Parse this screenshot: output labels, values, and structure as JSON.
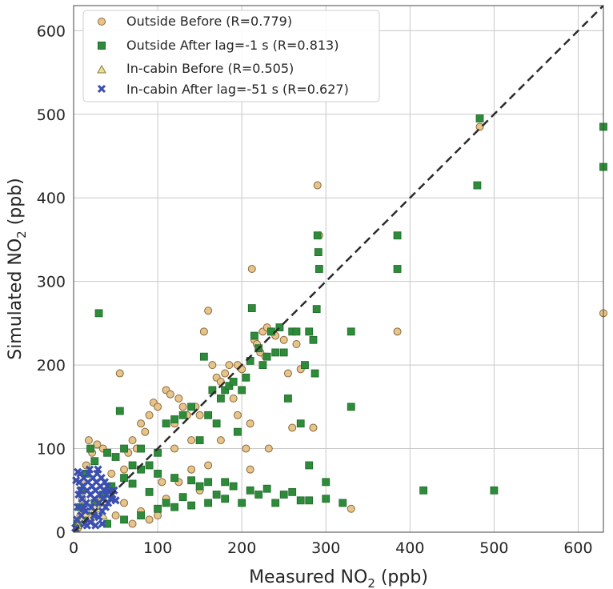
{
  "chart_data": {
    "type": "scatter",
    "xlabel": "Measured NO",
    "xlabel_sub": "2",
    "xlabel_unit": " (ppb)",
    "ylabel": "Simulated NO",
    "ylabel_sub": "2",
    "ylabel_unit": " (ppb)",
    "xlim": [
      0,
      630
    ],
    "ylim": [
      0,
      630
    ],
    "xticks": [
      0,
      100,
      200,
      300,
      400,
      500,
      600
    ],
    "yticks": [
      0,
      100,
      200,
      300,
      400,
      500,
      600
    ],
    "grid": true,
    "legend_position": "top-left",
    "reference_line": {
      "style": "dashed",
      "from": [
        0,
        0
      ],
      "to": [
        630,
        630
      ],
      "color": "#2b2b2b"
    },
    "series": [
      {
        "name": "Outside Before (R=0.779)",
        "marker": "circle",
        "color": "#e6c48c",
        "edge": "#8a6a3a",
        "points": [
          [
            5,
            5
          ],
          [
            8,
            20
          ],
          [
            10,
            40
          ],
          [
            12,
            60
          ],
          [
            15,
            80
          ],
          [
            18,
            110
          ],
          [
            22,
            95
          ],
          [
            28,
            105
          ],
          [
            35,
            100
          ],
          [
            45,
            70
          ],
          [
            55,
            190
          ],
          [
            60,
            75
          ],
          [
            65,
            95
          ],
          [
            70,
            110
          ],
          [
            75,
            100
          ],
          [
            80,
            130
          ],
          [
            85,
            120
          ],
          [
            90,
            140
          ],
          [
            95,
            155
          ],
          [
            100,
            150
          ],
          [
            105,
            60
          ],
          [
            110,
            40
          ],
          [
            110,
            170
          ],
          [
            115,
            165
          ],
          [
            120,
            130
          ],
          [
            125,
            160
          ],
          [
            130,
            150
          ],
          [
            135,
            140
          ],
          [
            140,
            110
          ],
          [
            145,
            150
          ],
          [
            150,
            140
          ],
          [
            155,
            240
          ],
          [
            160,
            265
          ],
          [
            165,
            200
          ],
          [
            170,
            185
          ],
          [
            175,
            180
          ],
          [
            180,
            190
          ],
          [
            185,
            200
          ],
          [
            190,
            160
          ],
          [
            195,
            200
          ],
          [
            200,
            195
          ],
          [
            205,
            100
          ],
          [
            210,
            75
          ],
          [
            212,
            315
          ],
          [
            215,
            230
          ],
          [
            218,
            225
          ],
          [
            222,
            215
          ],
          [
            225,
            240
          ],
          [
            228,
            210
          ],
          [
            230,
            245
          ],
          [
            232,
            100
          ],
          [
            235,
            240
          ],
          [
            240,
            235
          ],
          [
            250,
            230
          ],
          [
            255,
            190
          ],
          [
            260,
            125
          ],
          [
            265,
            225
          ],
          [
            270,
            195
          ],
          [
            285,
            125
          ],
          [
            290,
            415
          ],
          [
            292,
            355
          ],
          [
            330,
            28
          ],
          [
            385,
            240
          ],
          [
            483,
            485
          ],
          [
            630,
            262
          ],
          [
            175,
            110
          ],
          [
            195,
            140
          ],
          [
            210,
            130
          ],
          [
            120,
            100
          ],
          [
            160,
            80
          ],
          [
            140,
            75
          ],
          [
            150,
            50
          ],
          [
            125,
            60
          ],
          [
            100,
            20
          ],
          [
            90,
            15
          ],
          [
            80,
            25
          ],
          [
            70,
            10
          ],
          [
            60,
            35
          ],
          [
            50,
            20
          ],
          [
            40,
            10
          ],
          [
            30,
            40
          ],
          [
            20,
            15
          ]
        ]
      },
      {
        "name": "Outside After lag=-1 s (R=0.813)",
        "marker": "square",
        "color": "#2e8b3a",
        "edge": "#1f6b2a",
        "points": [
          [
            5,
            10
          ],
          [
            8,
            30
          ],
          [
            10,
            50
          ],
          [
            15,
            70
          ],
          [
            20,
            100
          ],
          [
            25,
            85
          ],
          [
            30,
            262
          ],
          [
            40,
            95
          ],
          [
            50,
            90
          ],
          [
            55,
            145
          ],
          [
            60,
            100
          ],
          [
            70,
            80
          ],
          [
            80,
            100
          ],
          [
            90,
            80
          ],
          [
            100,
            95
          ],
          [
            110,
            130
          ],
          [
            120,
            135
          ],
          [
            130,
            140
          ],
          [
            140,
            150
          ],
          [
            150,
            110
          ],
          [
            155,
            210
          ],
          [
            160,
            140
          ],
          [
            165,
            170
          ],
          [
            170,
            130
          ],
          [
            175,
            160
          ],
          [
            180,
            170
          ],
          [
            185,
            175
          ],
          [
            190,
            180
          ],
          [
            195,
            120
          ],
          [
            200,
            170
          ],
          [
            205,
            185
          ],
          [
            210,
            205
          ],
          [
            212,
            268
          ],
          [
            215,
            235
          ],
          [
            220,
            220
          ],
          [
            225,
            200
          ],
          [
            230,
            210
          ],
          [
            235,
            240
          ],
          [
            240,
            215
          ],
          [
            245,
            245
          ],
          [
            250,
            215
          ],
          [
            255,
            160
          ],
          [
            260,
            240
          ],
          [
            265,
            240
          ],
          [
            270,
            130
          ],
          [
            275,
            200
          ],
          [
            280,
            240
          ],
          [
            285,
            230
          ],
          [
            287,
            190
          ],
          [
            289,
            267
          ],
          [
            290,
            355
          ],
          [
            291,
            335
          ],
          [
            292,
            315
          ],
          [
            330,
            150
          ],
          [
            330,
            240
          ],
          [
            385,
            355
          ],
          [
            385,
            315
          ],
          [
            416,
            50
          ],
          [
            480,
            415
          ],
          [
            483,
            495
          ],
          [
            500,
            50
          ],
          [
            630,
            485
          ],
          [
            630,
            437
          ],
          [
            300,
            40
          ],
          [
            280,
            38
          ],
          [
            260,
            48
          ],
          [
            240,
            35
          ],
          [
            220,
            45
          ],
          [
            200,
            35
          ],
          [
            180,
            40
          ],
          [
            160,
            35
          ],
          [
            140,
            32
          ],
          [
            120,
            30
          ],
          [
            100,
            28
          ],
          [
            80,
            20
          ],
          [
            60,
            15
          ],
          [
            40,
            10
          ],
          [
            210,
            50
          ],
          [
            230,
            52
          ],
          [
            250,
            45
          ],
          [
            270,
            38
          ],
          [
            190,
            55
          ],
          [
            170,
            45
          ],
          [
            150,
            55
          ],
          [
            130,
            42
          ],
          [
            110,
            35
          ],
          [
            90,
            48
          ],
          [
            70,
            58
          ],
          [
            320,
            35
          ],
          [
            300,
            60
          ],
          [
            280,
            80
          ],
          [
            180,
            60
          ],
          [
            160,
            60
          ],
          [
            140,
            62
          ],
          [
            120,
            65
          ],
          [
            100,
            70
          ],
          [
            80,
            75
          ],
          [
            60,
            65
          ],
          [
            45,
            55
          ],
          [
            35,
            45
          ],
          [
            25,
            35
          ],
          [
            15,
            20
          ]
        ]
      },
      {
        "name": "In-cabin Before (R=0.505)",
        "marker": "triangle",
        "color": "#e8dfa0",
        "edge": "#8a7a3a",
        "points": [
          [
            5,
            8
          ],
          [
            10,
            15
          ],
          [
            15,
            22
          ],
          [
            20,
            18
          ],
          [
            25,
            30
          ],
          [
            30,
            28
          ],
          [
            35,
            20
          ]
        ]
      },
      {
        "name": "In-cabin After lag=-51 s (R=0.627)",
        "marker": "x",
        "color": "#3b4fb0",
        "edge": "#2a3a90",
        "points": [
          [
            2,
            5
          ],
          [
            4,
            15
          ],
          [
            5,
            30
          ],
          [
            6,
            45
          ],
          [
            7,
            60
          ],
          [
            8,
            70
          ],
          [
            9,
            20
          ],
          [
            10,
            40
          ],
          [
            11,
            55
          ],
          [
            12,
            65
          ],
          [
            13,
            10
          ],
          [
            14,
            25
          ],
          [
            15,
            35
          ],
          [
            16,
            50
          ],
          [
            17,
            60
          ],
          [
            18,
            70
          ],
          [
            19,
            75
          ],
          [
            20,
            45
          ],
          [
            21,
            30
          ],
          [
            22,
            55
          ],
          [
            23,
            65
          ],
          [
            24,
            20
          ],
          [
            25,
            40
          ],
          [
            26,
            50
          ],
          [
            27,
            60
          ],
          [
            28,
            70
          ],
          [
            29,
            75
          ],
          [
            30,
            35
          ],
          [
            31,
            45
          ],
          [
            32,
            55
          ],
          [
            33,
            65
          ],
          [
            34,
            25
          ],
          [
            35,
            40
          ],
          [
            36,
            50
          ],
          [
            37,
            60
          ],
          [
            38,
            30
          ],
          [
            39,
            45
          ],
          [
            40,
            55
          ],
          [
            41,
            35
          ],
          [
            42,
            48
          ],
          [
            44,
            40
          ],
          [
            46,
            45
          ],
          [
            48,
            50
          ],
          [
            50,
            38
          ],
          [
            3,
            62
          ],
          [
            5,
            72
          ],
          [
            8,
            50
          ],
          [
            12,
            28
          ],
          [
            16,
            8
          ],
          [
            20,
            12
          ],
          [
            26,
            8
          ],
          [
            30,
            18
          ],
          [
            34,
            10
          ]
        ]
      }
    ]
  }
}
